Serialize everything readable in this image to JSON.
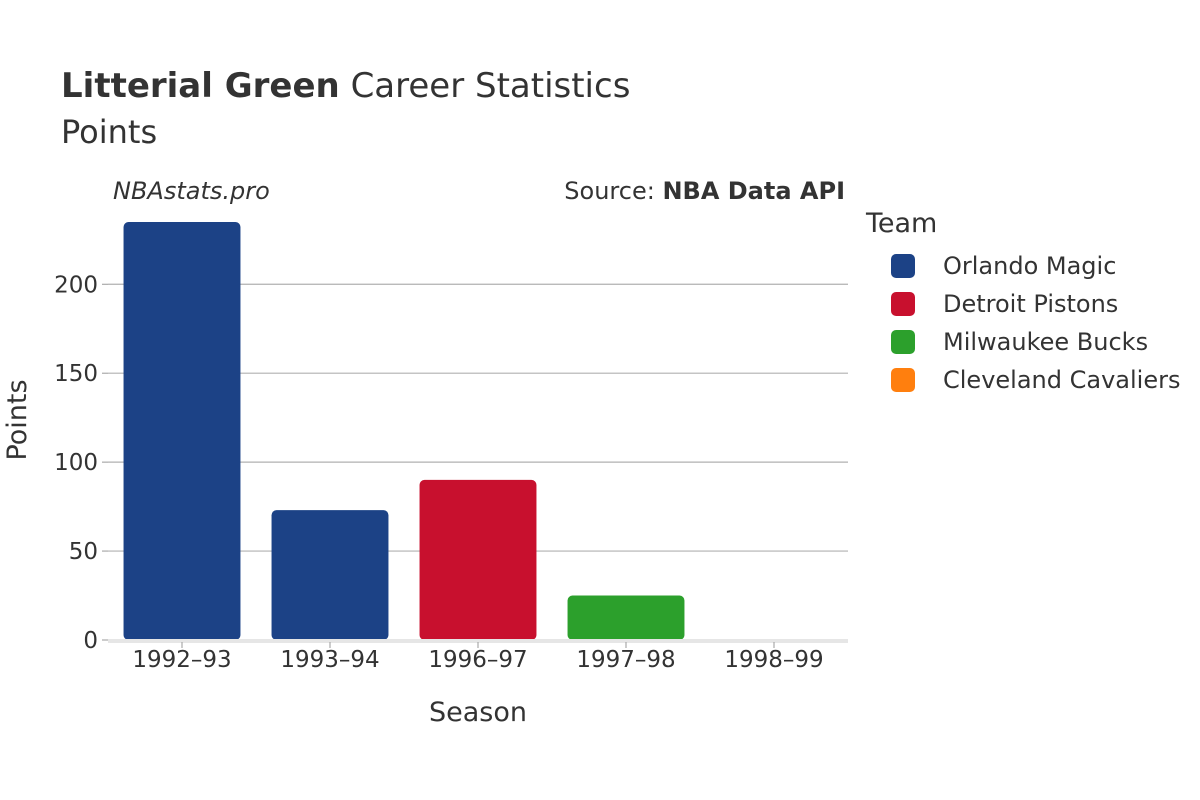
{
  "header": {
    "player_name": "Litterial Green",
    "title_suffix": "Career Statistics",
    "subtitle": "Points",
    "site": "NBAstats.pro",
    "source_prefix": "Source: ",
    "source_name": "NBA Data API"
  },
  "legend": {
    "title": "Team",
    "items": [
      {
        "label": "Orlando Magic",
        "color": "#1c4286"
      },
      {
        "label": "Detroit Pistons",
        "color": "#c8102e"
      },
      {
        "label": "Milwaukee Bucks",
        "color": "#2ca02c"
      },
      {
        "label": "Cleveland Cavaliers",
        "color": "#ff7f0e"
      }
    ]
  },
  "chart_data": {
    "type": "bar",
    "title": "Litterial Green Career Statistics",
    "subtitle": "Points",
    "xlabel": "Season",
    "ylabel": "Points",
    "ylim": [
      0,
      235
    ],
    "yticks": [
      0,
      50,
      100,
      150,
      200
    ],
    "grid": true,
    "legend_position": "right",
    "categories": [
      "1992–93",
      "1993–94",
      "1996–97",
      "1997–98",
      "1998–99"
    ],
    "values": [
      235,
      73,
      90,
      25,
      0
    ],
    "teams": [
      "Orlando Magic",
      "Orlando Magic",
      "Detroit Pistons",
      "Milwaukee Bucks",
      "Cleveland Cavaliers"
    ],
    "colors": [
      "#1c4286",
      "#1c4286",
      "#c8102e",
      "#2ca02c",
      "#ff7f0e"
    ]
  }
}
